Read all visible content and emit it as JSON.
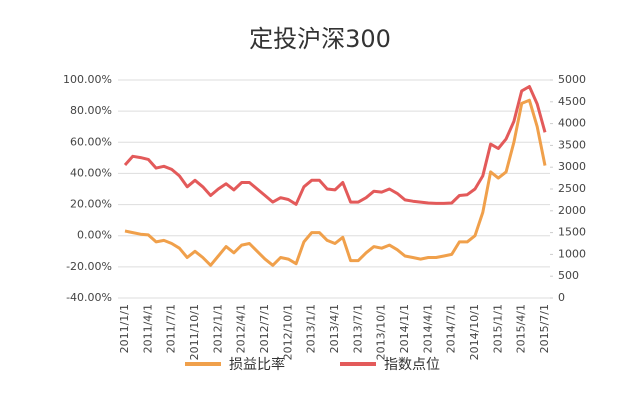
{
  "chart_data": {
    "type": "line",
    "title": "定投沪深300",
    "categories": [
      "2011/1/1",
      null,
      null,
      "2011/4/1",
      null,
      null,
      "2011/7/1",
      null,
      null,
      "2011/10/1",
      null,
      null,
      "2012/1/1",
      null,
      null,
      "2012/4/1",
      null,
      null,
      "2012/7/1",
      null,
      null,
      "2012/10/1",
      null,
      null,
      "2013/1/1",
      null,
      null,
      "2013/4/1",
      null,
      null,
      "2013/7/1",
      null,
      null,
      "2013/10/1",
      null,
      null,
      "2014/1/1",
      null,
      null,
      "2014/4/1",
      null,
      null,
      "2014/7/1",
      null,
      null,
      "2014/10/1",
      null,
      null,
      "2015/1/1",
      null,
      null,
      "2015/4/1",
      null,
      null,
      "2015/7/1"
    ],
    "series": [
      {
        "name": "损益比率",
        "color": "#f0a04b",
        "axis": "y",
        "values": [
          3,
          2,
          1,
          0.5,
          -4,
          -3,
          -5,
          -8,
          -14,
          -10,
          -14,
          -19,
          -13,
          -7,
          -11,
          -6,
          -5,
          -10,
          -15,
          -19,
          -14,
          -15,
          -18,
          -4,
          2,
          2,
          -3,
          -5,
          -1,
          -16,
          -16,
          -11,
          -7,
          -8,
          -6,
          -9,
          -13,
          -14,
          -15,
          -14,
          -14,
          -13,
          -12,
          -4,
          -4,
          0,
          15,
          41,
          37,
          41,
          60,
          85,
          87,
          70,
          45
        ]
      },
      {
        "name": "指数点位",
        "color": "#e35a5a",
        "axis": "y2",
        "values": [
          3050,
          3250,
          3220,
          3180,
          2980,
          3020,
          2950,
          2800,
          2550,
          2700,
          2550,
          2350,
          2500,
          2620,
          2480,
          2650,
          2650,
          2500,
          2350,
          2200,
          2300,
          2260,
          2150,
          2550,
          2700,
          2700,
          2500,
          2480,
          2650,
          2200,
          2200,
          2300,
          2450,
          2430,
          2500,
          2400,
          2250,
          2220,
          2200,
          2180,
          2170,
          2170,
          2180,
          2350,
          2370,
          2500,
          2800,
          3530,
          3430,
          3650,
          4050,
          4750,
          4850,
          4450,
          3800
        ]
      }
    ],
    "ylim": [
      -40,
      100
    ],
    "yticks": [
      {
        "value": -40,
        "label": "-40.00%"
      },
      {
        "value": -20,
        "label": "-20.00%"
      },
      {
        "value": 0,
        "label": "0.00%"
      },
      {
        "value": 20,
        "label": "20.00%"
      },
      {
        "value": 40,
        "label": "40.00%"
      },
      {
        "value": 60,
        "label": "60.00%"
      },
      {
        "value": 80,
        "label": "80.00%"
      },
      {
        "value": 100,
        "label": "100.00%"
      }
    ],
    "y2lim": [
      0,
      5000
    ],
    "y2ticks": [
      0,
      500,
      1000,
      1500,
      2000,
      2500,
      3000,
      3500,
      4000,
      4500,
      5000
    ],
    "grid": true
  }
}
